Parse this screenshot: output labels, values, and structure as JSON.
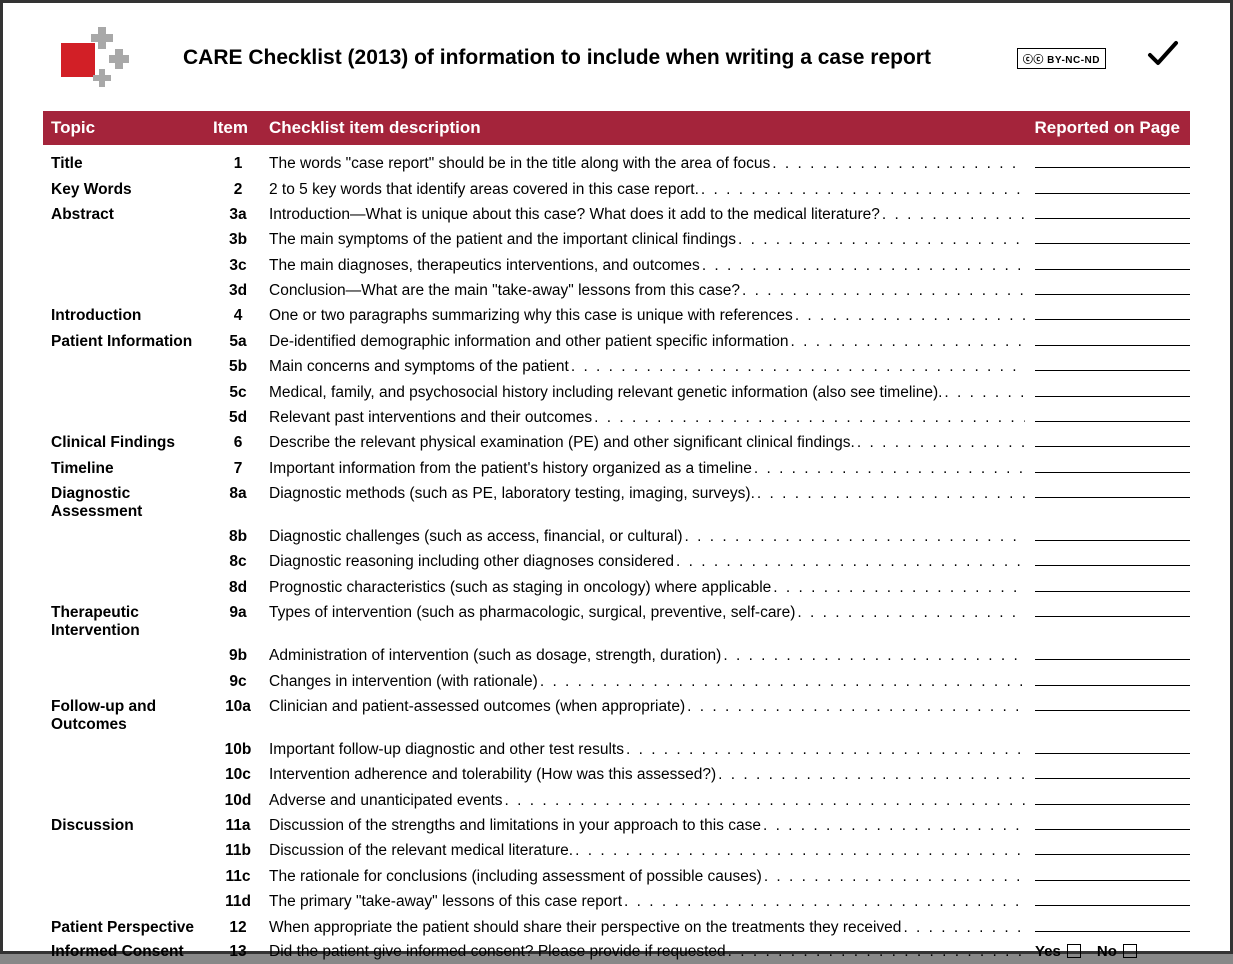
{
  "colors": {
    "header_bg": "#a4243b",
    "header_text": "#ffffff",
    "text": "#000000",
    "logo_red": "#d21f26",
    "logo_grey": "#a8a8a8",
    "page_bg": "#ffffff"
  },
  "license_badge": "ⓒⓒ BY-NC-ND",
  "title": "CARE Checklist (2013) of information to include when writing a case report",
  "table_header": {
    "topic": "Topic",
    "item": "Item",
    "desc": "Checklist item description",
    "reported": "Reported on Page"
  },
  "yes_label": "Yes",
  "no_label": "No",
  "rows": [
    {
      "topic": "Title",
      "item": "1",
      "desc": "The words \"case report\" should be in the title along with the area of focus",
      "slot": "line"
    },
    {
      "topic": "Key Words",
      "item": "2",
      "desc": "2 to 5 key words that identify areas covered in this case report.",
      "slot": "line"
    },
    {
      "topic": "Abstract",
      "item": "3a",
      "desc": "Introduction—What is unique about this case? What does it add to the medical literature?",
      "slot": "line"
    },
    {
      "topic": "",
      "item": "3b",
      "desc": "The main symptoms of the patient and the important clinical findings",
      "slot": "line"
    },
    {
      "topic": "",
      "item": "3c",
      "desc": "The main diagnoses, therapeutics interventions, and outcomes",
      "slot": "line"
    },
    {
      "topic": "",
      "item": "3d",
      "desc": "Conclusion—What are the main \"take-away\" lessons from this case?",
      "slot": "line"
    },
    {
      "topic": "Introduction",
      "item": "4",
      "desc": "One or two paragraphs summarizing why this case is unique with references",
      "slot": "line"
    },
    {
      "topic": "Patient Information",
      "item": "5a",
      "desc": "De-identified demographic information and other patient specific information",
      "slot": "line"
    },
    {
      "topic": "",
      "item": "5b",
      "desc": "Main concerns and symptoms of the patient",
      "slot": "line"
    },
    {
      "topic": "",
      "item": "5c",
      "desc": "Medical, family, and psychosocial history including relevant genetic information (also see timeline).",
      "slot": "line"
    },
    {
      "topic": "",
      "item": "5d",
      "desc": "Relevant past interventions and their outcomes",
      "slot": "line"
    },
    {
      "topic": "Clinical Findings",
      "item": "6",
      "desc": "Describe the relevant physical examination (PE) and other significant clinical findings.",
      "slot": "line"
    },
    {
      "topic": "Timeline",
      "item": "7",
      "desc": "Important information from the patient's history organized as a timeline",
      "slot": "line"
    },
    {
      "topic": "Diagnostic Assessment",
      "item": "8a",
      "desc": "Diagnostic methods (such as PE, laboratory testing, imaging, surveys).",
      "slot": "line"
    },
    {
      "topic": "",
      "item": "8b",
      "desc": "Diagnostic challenges (such as access, financial, or cultural)",
      "slot": "line"
    },
    {
      "topic": "",
      "item": "8c",
      "desc": "Diagnostic reasoning including other diagnoses considered",
      "slot": "line"
    },
    {
      "topic": "",
      "item": "8d",
      "desc": "Prognostic characteristics (such as staging in oncology) where applicable",
      "slot": "line"
    },
    {
      "topic": "Therapeutic Intervention",
      "item": "9a",
      "desc": "Types of intervention (such as pharmacologic, surgical, preventive, self-care)",
      "slot": "line"
    },
    {
      "topic": "",
      "item": "9b",
      "desc": "Administration of intervention (such as dosage, strength, duration)",
      "slot": "line"
    },
    {
      "topic": "",
      "item": "9c",
      "desc": "Changes in intervention (with rationale)",
      "slot": "line"
    },
    {
      "topic": "Follow-up and Outcomes",
      "item": "10a",
      "desc": "Clinician and patient-assessed outcomes (when appropriate)",
      "slot": "line"
    },
    {
      "topic": "",
      "item": "10b",
      "desc": "Important follow-up diagnostic and other test results",
      "slot": "line"
    },
    {
      "topic": "",
      "item": "10c",
      "desc": "Intervention adherence and tolerability (How was this assessed?)",
      "slot": "line"
    },
    {
      "topic": "",
      "item": "10d",
      "desc": "Adverse and unanticipated events",
      "slot": "line"
    },
    {
      "topic": "Discussion",
      "item": "11a",
      "desc": "Discussion of the strengths and limitations in your approach to this case",
      "slot": "line"
    },
    {
      "topic": "",
      "item": "11b",
      "desc": "Discussion of the relevant medical literature.",
      "slot": "line"
    },
    {
      "topic": "",
      "item": "11c",
      "desc": "The rationale for conclusions (including assessment of possible causes)",
      "slot": "line"
    },
    {
      "topic": "",
      "item": "11d",
      "desc": "The primary \"take-away\" lessons of this case report",
      "slot": "line"
    },
    {
      "topic": "Patient Perspective",
      "item": "12",
      "desc": "When appropriate the patient should share their perspective on the treatments they received",
      "slot": "line"
    },
    {
      "topic": "Informed Consent",
      "item": "13",
      "desc": "Did the patient give informed consent? Please provide if requested",
      "slot": "yesno"
    }
  ]
}
